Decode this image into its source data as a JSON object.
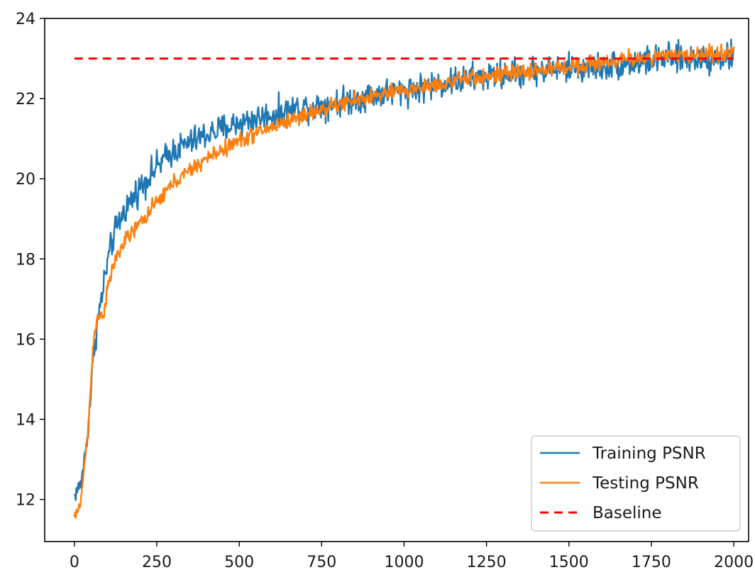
{
  "chart_data": {
    "type": "line",
    "title": "",
    "xlabel": "",
    "ylabel": "",
    "xlim": [
      -90,
      2045
    ],
    "ylim": [
      10.95,
      24.0
    ],
    "x_ticks": [
      0,
      250,
      500,
      750,
      1000,
      1250,
      1500,
      1750,
      2000
    ],
    "x_tick_labels": [
      "0",
      "250",
      "500",
      "750",
      "1000",
      "1250",
      "1500",
      "1750",
      "2000"
    ],
    "y_ticks": [
      12,
      14,
      16,
      18,
      20,
      22,
      24
    ],
    "y_tick_labels": [
      "12",
      "14",
      "16",
      "18",
      "20",
      "22",
      "24"
    ],
    "grid": false,
    "legend_position": "lower-right",
    "series": [
      {
        "name": "Training PSNR",
        "color": "#1f77b4",
        "style": "solid",
        "noise": 0.18,
        "x": [
          0,
          20,
          40,
          60,
          70,
          80,
          100,
          120,
          150,
          200,
          250,
          300,
          400,
          500,
          600,
          700,
          800,
          900,
          1000,
          1100,
          1200,
          1300,
          1400,
          1500,
          1600,
          1700,
          1800,
          1900,
          2000
        ],
        "y": [
          12.1,
          12.4,
          13.6,
          15.8,
          16.4,
          16.9,
          17.9,
          18.6,
          19.2,
          19.8,
          20.3,
          20.7,
          21.1,
          21.4,
          21.6,
          21.8,
          21.9,
          22.1,
          22.2,
          22.35,
          22.5,
          22.6,
          22.7,
          22.75,
          22.8,
          22.9,
          23.0,
          23.0,
          23.05
        ]
      },
      {
        "name": "Testing PSNR",
        "color": "#ff7f0e",
        "style": "solid",
        "noise": 0.1,
        "x": [
          0,
          10,
          20,
          40,
          60,
          70,
          80,
          90,
          100,
          120,
          150,
          200,
          250,
          300,
          400,
          500,
          600,
          700,
          800,
          900,
          1000,
          1100,
          1200,
          1300,
          1400,
          1500,
          1600,
          1700,
          1800,
          1900,
          2000
        ],
        "y": [
          11.55,
          11.7,
          12.0,
          13.6,
          16.2,
          16.5,
          16.6,
          16.7,
          17.2,
          17.9,
          18.4,
          18.9,
          19.4,
          19.9,
          20.5,
          20.95,
          21.3,
          21.6,
          21.85,
          22.05,
          22.2,
          22.35,
          22.5,
          22.6,
          22.7,
          22.8,
          22.9,
          23.0,
          23.05,
          23.1,
          23.15
        ]
      },
      {
        "name": "Baseline",
        "color": "#ff0000",
        "style": "dashed",
        "noise": 0,
        "x": [
          0,
          2000
        ],
        "y": [
          23.0,
          23.0
        ]
      }
    ]
  }
}
